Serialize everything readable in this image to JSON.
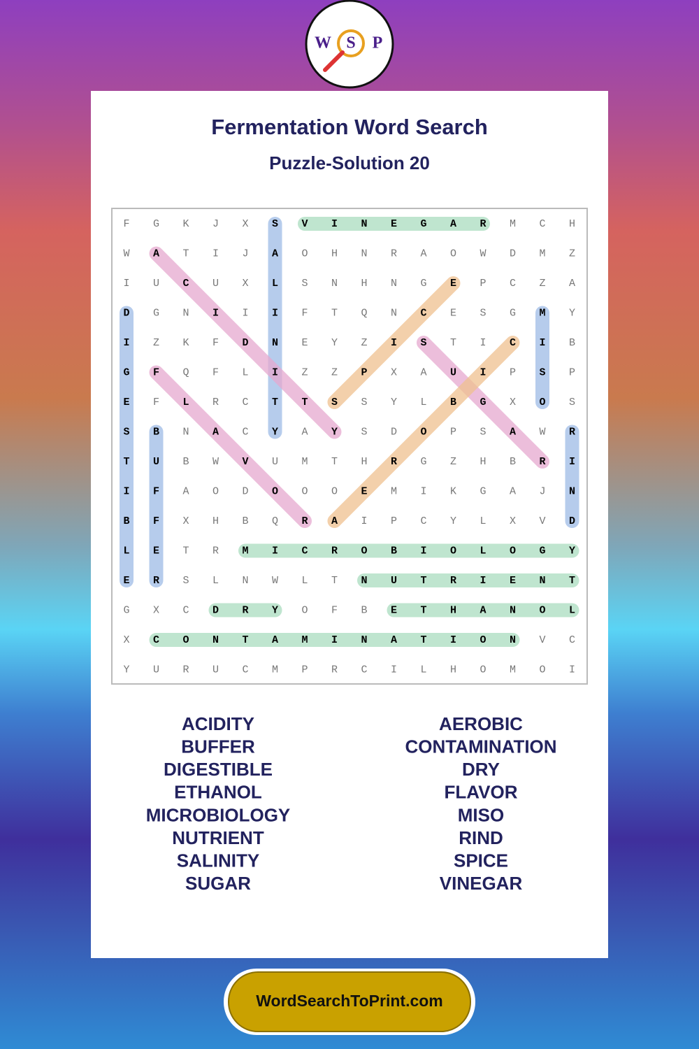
{
  "logo": {
    "letters": [
      "W",
      "S",
      "P"
    ]
  },
  "header": {
    "title": "Fermentation Word Search",
    "subtitle": "Puzzle-Solution 20"
  },
  "grid": {
    "rows": [
      [
        "F",
        "G",
        "K",
        "J",
        "X",
        "S",
        "V",
        "I",
        "N",
        "E",
        "G",
        "A",
        "R",
        "M",
        "C",
        "H"
      ],
      [
        "W",
        "A",
        "T",
        "I",
        "J",
        "A",
        "O",
        "H",
        "N",
        "R",
        "A",
        "O",
        "W",
        "D",
        "M",
        "Z"
      ],
      [
        "I",
        "U",
        "C",
        "U",
        "X",
        "L",
        "S",
        "N",
        "H",
        "N",
        "G",
        "E",
        "P",
        "C",
        "Z",
        "A"
      ],
      [
        "D",
        "G",
        "N",
        "I",
        "I",
        "I",
        "F",
        "T",
        "Q",
        "N",
        "C",
        "E",
        "S",
        "G",
        "M",
        "Y"
      ],
      [
        "I",
        "Z",
        "K",
        "F",
        "D",
        "N",
        "E",
        "Y",
        "Z",
        "I",
        "S",
        "T",
        "I",
        "C",
        "I",
        "B"
      ],
      [
        "G",
        "F",
        "Q",
        "F",
        "L",
        "I",
        "Z",
        "Z",
        "P",
        "X",
        "A",
        "U",
        "I",
        "P",
        "S",
        "P"
      ],
      [
        "E",
        "F",
        "L",
        "R",
        "C",
        "T",
        "T",
        "S",
        "S",
        "Y",
        "L",
        "B",
        "G",
        "X",
        "O",
        "S"
      ],
      [
        "S",
        "B",
        "N",
        "A",
        "C",
        "Y",
        "A",
        "Y",
        "S",
        "D",
        "O",
        "P",
        "S",
        "A",
        "W",
        "R"
      ],
      [
        "T",
        "U",
        "B",
        "W",
        "V",
        "U",
        "M",
        "T",
        "H",
        "R",
        "G",
        "Z",
        "H",
        "B",
        "R",
        "I"
      ],
      [
        "I",
        "F",
        "A",
        "O",
        "D",
        "O",
        "O",
        "O",
        "E",
        "M",
        "I",
        "K",
        "G",
        "A",
        "J",
        "N"
      ],
      [
        "B",
        "F",
        "X",
        "H",
        "B",
        "Q",
        "R",
        "A",
        "I",
        "P",
        "C",
        "Y",
        "L",
        "X",
        "V",
        "D"
      ],
      [
        "L",
        "E",
        "T",
        "R",
        "M",
        "I",
        "C",
        "R",
        "O",
        "B",
        "I",
        "O",
        "L",
        "O",
        "G",
        "Y"
      ],
      [
        "E",
        "R",
        "S",
        "L",
        "N",
        "W",
        "L",
        "T",
        "N",
        "U",
        "T",
        "R",
        "I",
        "E",
        "N",
        "T"
      ],
      [
        "G",
        "X",
        "C",
        "D",
        "R",
        "Y",
        "O",
        "F",
        "B",
        "E",
        "T",
        "H",
        "A",
        "N",
        "O",
        "L"
      ],
      [
        "X",
        "C",
        "O",
        "N",
        "T",
        "A",
        "M",
        "I",
        "N",
        "A",
        "T",
        "I",
        "O",
        "N",
        "V",
        "C"
      ],
      [
        "Y",
        "U",
        "R",
        "U",
        "C",
        "M",
        "P",
        "R",
        "C",
        "I",
        "L",
        "H",
        "O",
        "M",
        "O",
        "I"
      ]
    ]
  },
  "word_list": {
    "left": [
      "ACIDITY",
      "BUFFER",
      "DIGESTIBLE",
      "ETHANOL",
      "MICROBIOLOGY",
      "NUTRIENT",
      "SALINITY",
      "SUGAR"
    ],
    "right": [
      "AEROBIC",
      "CONTAMINATION",
      "DRY",
      "FLAVOR",
      "MISO",
      "RIND",
      "SPICE",
      "VINEGAR"
    ]
  },
  "footer": {
    "url": "WordSearchToPrint.com"
  }
}
